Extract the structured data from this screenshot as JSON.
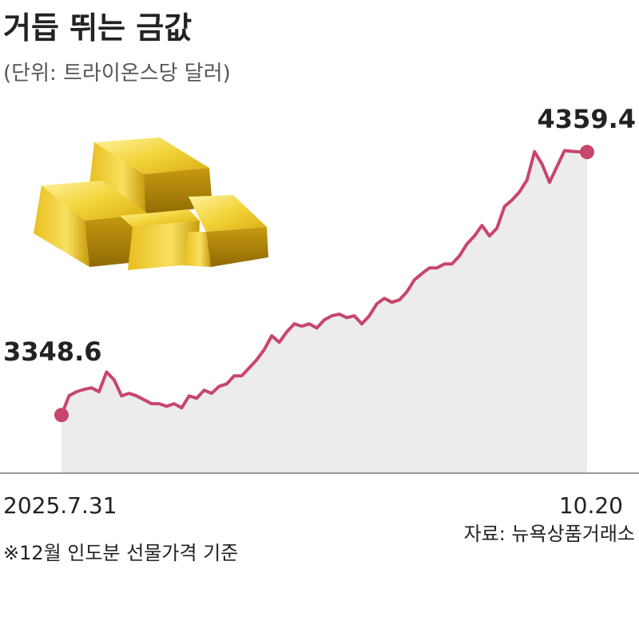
{
  "chart_data": {
    "type": "area",
    "title": "거듭 뛰는 금값",
    "subtitle": "(단위: 트라이온스당 달러)",
    "note": "※12월 인도분 선물가격 기준",
    "source": "자료: 뉴욕상품거래소",
    "categories": [
      "2025.7.31",
      null,
      null,
      null,
      null,
      null,
      null,
      null,
      null,
      null,
      null,
      null,
      null,
      null,
      null,
      null,
      null,
      null,
      null,
      null,
      null,
      null,
      null,
      null,
      null,
      null,
      null,
      null,
      null,
      null,
      null,
      null,
      null,
      null,
      null,
      null,
      null,
      null,
      null,
      null,
      null,
      null,
      null,
      null,
      null,
      null,
      null,
      null,
      null,
      null,
      null,
      null,
      null,
      null,
      null,
      null,
      null,
      null,
      null,
      null,
      null,
      null,
      null,
      null,
      null,
      null,
      null,
      null,
      null,
      null,
      "10.20"
    ],
    "values": [
      3348.6,
      3422,
      3438,
      3447,
      3453,
      3438,
      3514,
      3484,
      3422,
      3432,
      3422,
      3407,
      3392,
      3392,
      3382,
      3392,
      3376,
      3422,
      3413,
      3444,
      3432,
      3459,
      3468,
      3499,
      3499,
      3530,
      3561,
      3600,
      3653,
      3628,
      3668,
      3699,
      3690,
      3699,
      3683,
      3714,
      3730,
      3736,
      3723,
      3730,
      3699,
      3730,
      3776,
      3797,
      3782,
      3791,
      3822,
      3868,
      3892,
      3914,
      3914,
      3929,
      3929,
      3960,
      4006,
      4037,
      4077,
      4037,
      4067,
      4150,
      4175,
      4206,
      4252,
      4361,
      4313,
      4243,
      4304,
      4365,
      4362,
      4360,
      4359.4
    ],
    "color": "#c8466b",
    "fill": "#ececec",
    "ylim": [
      3125,
      4400
    ]
  }
}
